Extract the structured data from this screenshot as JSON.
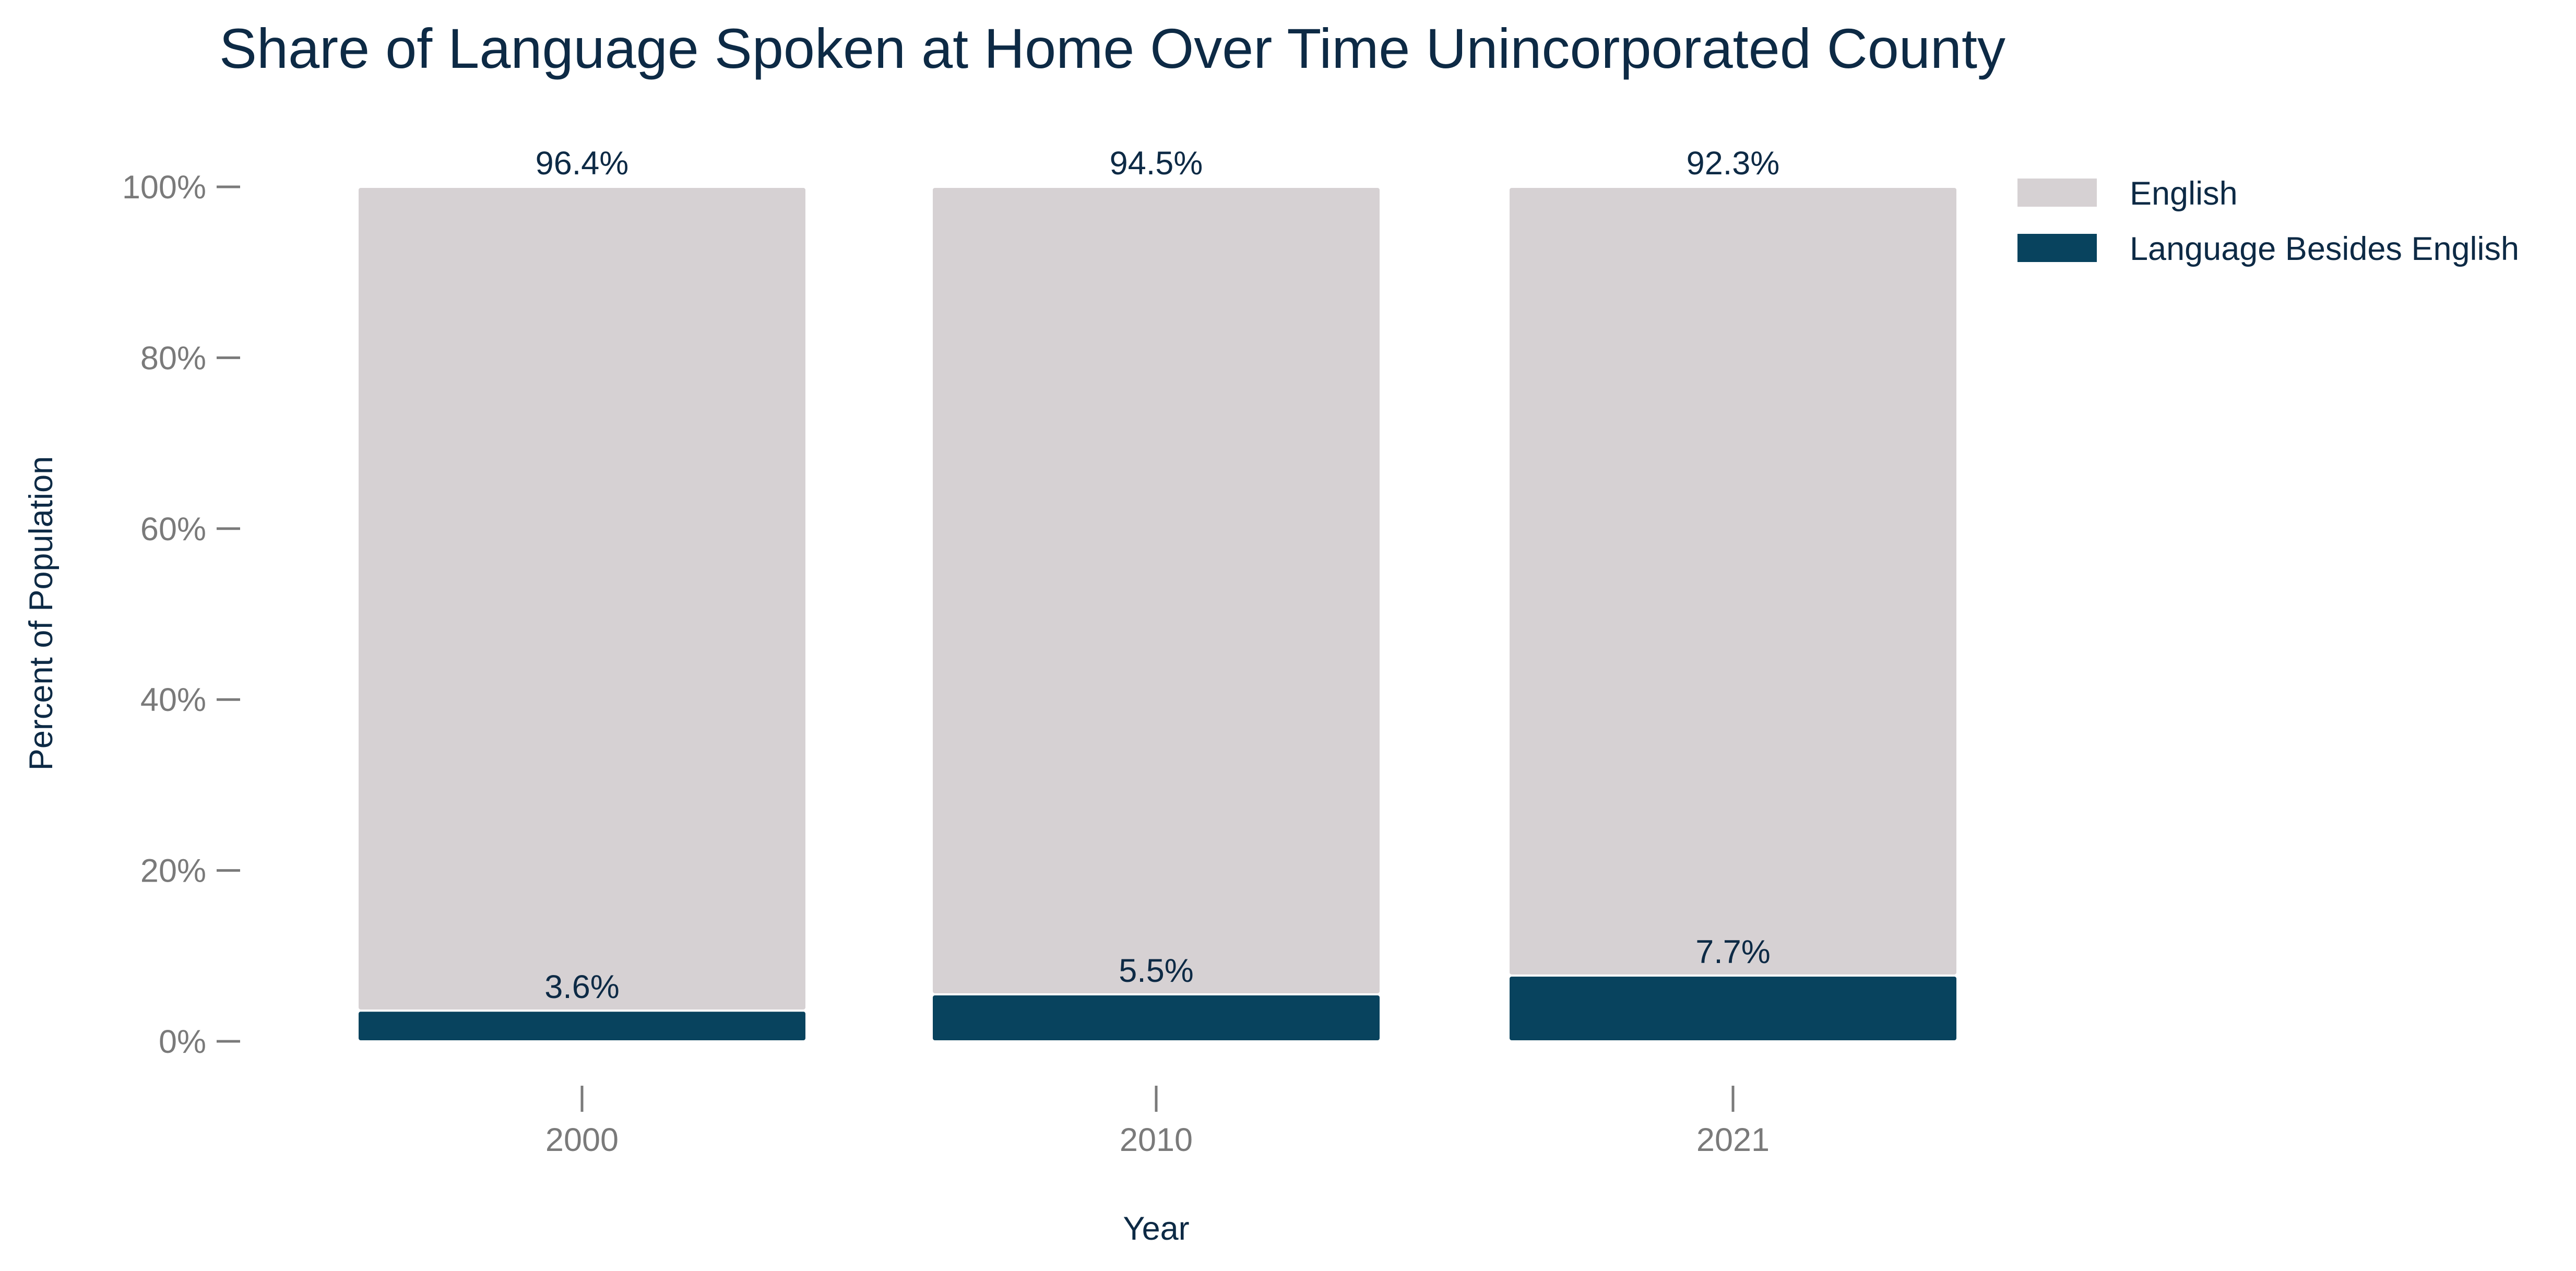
{
  "chart_data": {
    "type": "bar",
    "stacked": true,
    "title": "Share of Language Spoken at Home Over Time Unincorporated County",
    "xlabel": "Year",
    "ylabel": "Percent of Population",
    "categories": [
      "2000",
      "2010",
      "2021"
    ],
    "ylim": [
      0,
      100
    ],
    "yticks": [
      0,
      20,
      40,
      60,
      80,
      100
    ],
    "ytick_labels": [
      "0%",
      "20%",
      "40%",
      "60%",
      "80%",
      "100%"
    ],
    "series": [
      {
        "name": "Language Besides English",
        "values": [
          3.6,
          5.5,
          7.7
        ],
        "labels": [
          "3.6%",
          "5.5%",
          "7.7%"
        ],
        "color": "#08435e"
      },
      {
        "name": "English",
        "values": [
          96.4,
          94.5,
          92.3
        ],
        "labels": [
          "96.4%",
          "94.5%",
          "92.3%"
        ],
        "color": "#d6d1d3"
      }
    ],
    "legend_order": [
      "English",
      "Language Besides English"
    ],
    "legend_position": "top-right",
    "grid": false
  }
}
